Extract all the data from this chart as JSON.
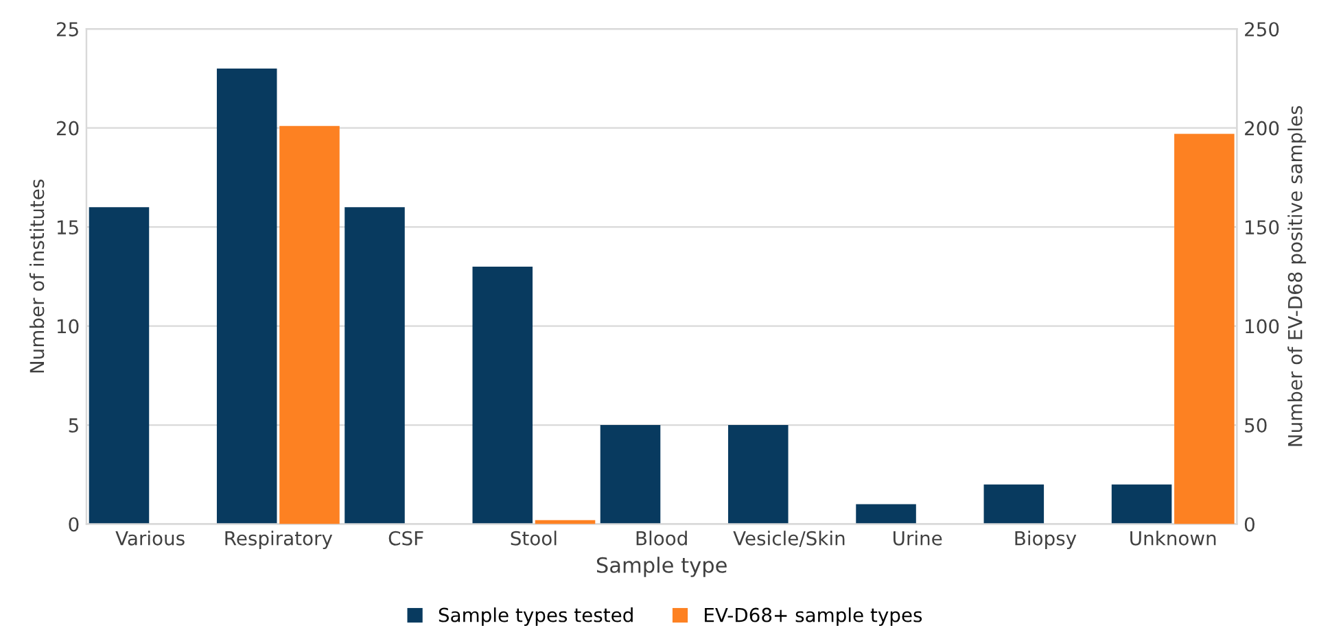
{
  "chart_data": {
    "type": "bar",
    "categories": [
      "Various",
      "Respiratory",
      "CSF",
      "Stool",
      "Blood",
      "Vesicle/Skin",
      "Urine",
      "Biopsy",
      "Unknown"
    ],
    "series": [
      {
        "name": "Sample types tested",
        "color": "#083a5f",
        "values": [
          16,
          23,
          16,
          13,
          5,
          5,
          1,
          2,
          2
        ]
      },
      {
        "name": "EV-D68+ sample types",
        "color": "#fd8122",
        "axis": "y2",
        "values": [
          null,
          201,
          null,
          2,
          null,
          null,
          null,
          null,
          197
        ]
      }
    ],
    "xlabel": "Sample type",
    "ylabel": "Number of institutes",
    "y2label": "Number of EV-D68 positive samples",
    "ylim": [
      0,
      25
    ],
    "yticks": [
      0,
      5,
      10,
      15,
      20,
      25
    ],
    "y2lim": [
      0,
      250
    ],
    "y2ticks": [
      0,
      50,
      100,
      150,
      200,
      250
    ],
    "grid": "y",
    "legend": "bottom"
  }
}
